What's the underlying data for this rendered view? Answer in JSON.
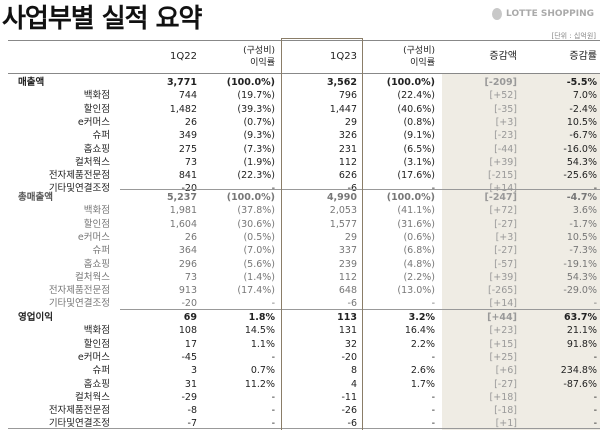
{
  "title": "사업부별 실적 요약",
  "logo": "LOTTE SHOPPING",
  "unit": "[단위 : 십억원]",
  "header": {
    "c1": "1Q22",
    "c2a": "(구성비)",
    "c2b": "이익률",
    "c3": "1Q23",
    "c4a": "(구성비)",
    "c4b": "이익률",
    "c5": "증감액",
    "c6": "증감률"
  },
  "colors": {
    "highlight_border": "#8a7d68",
    "shade": "#efece4"
  },
  "sections": [
    {
      "label": "매출액",
      "style": "normal",
      "total": [
        "3,771",
        "(100.0%)",
        "3,562",
        "(100.0%)",
        "[-209]",
        "-5.5%"
      ],
      "rows": [
        [
          "백화점",
          "744",
          "(19.7%)",
          "796",
          "(22.4%)",
          "[+52]",
          "7.0%"
        ],
        [
          "할인점",
          "1,482",
          "(39.3%)",
          "1,447",
          "(40.6%)",
          "[-35]",
          "-2.4%"
        ],
        [
          "e커머스",
          "26",
          "(0.7%)",
          "29",
          "(0.8%)",
          "[+3]",
          "10.5%"
        ],
        [
          "슈퍼",
          "349",
          "(9.3%)",
          "326",
          "(9.1%)",
          "[-23]",
          "-6.7%"
        ],
        [
          "홈쇼핑",
          "275",
          "(7.3%)",
          "231",
          "(6.5%)",
          "[-44]",
          "-16.0%"
        ],
        [
          "컬처웍스",
          "73",
          "(1.9%)",
          "112",
          "(3.1%)",
          "[+39]",
          "54.3%"
        ],
        [
          "전자제품전문점",
          "841",
          "(22.3%)",
          "626",
          "(17.6%)",
          "[-215]",
          "-25.6%"
        ],
        [
          "기타및연결조정",
          "-20",
          "-",
          "-6",
          "-",
          "[+14]",
          "-"
        ]
      ]
    },
    {
      "label": "총매출액",
      "style": "gray",
      "total": [
        "5,237",
        "(100.0%)",
        "4,990",
        "(100.0%)",
        "[-247]",
        "-4.7%"
      ],
      "rows": [
        [
          "백화점",
          "1,981",
          "(37.8%)",
          "2,053",
          "(41.1%)",
          "[+72]",
          "3.6%"
        ],
        [
          "할인점",
          "1,604",
          "(30.6%)",
          "1,577",
          "(31.6%)",
          "[-27]",
          "-1.7%"
        ],
        [
          "e커머스",
          "26",
          "(0.5%)",
          "29",
          "(0.6%)",
          "[+3]",
          "10.5%"
        ],
        [
          "슈퍼",
          "364",
          "(7.0%)",
          "337",
          "(6.8%)",
          "[-27]",
          "-7.3%"
        ],
        [
          "홈쇼핑",
          "296",
          "(5.6%)",
          "239",
          "(4.8%)",
          "[-57]",
          "-19.1%"
        ],
        [
          "컬처웍스",
          "73",
          "(1.4%)",
          "112",
          "(2.2%)",
          "[+39]",
          "54.3%"
        ],
        [
          "전자제품전문점",
          "913",
          "(17.4%)",
          "648",
          "(13.0%)",
          "[-265]",
          "-29.0%"
        ],
        [
          "기타및연결조정",
          "-20",
          "-",
          "-6",
          "-",
          "[+14]",
          "-"
        ]
      ]
    },
    {
      "label": "영업이익",
      "style": "normal",
      "total": [
        "69",
        "1.8%",
        "113",
        "3.2%",
        "[+44]",
        "63.7%"
      ],
      "rows": [
        [
          "백화점",
          "108",
          "14.5%",
          "131",
          "16.4%",
          "[+23]",
          "21.1%"
        ],
        [
          "할인점",
          "17",
          "1.1%",
          "32",
          "2.2%",
          "[+15]",
          "91.8%"
        ],
        [
          "e커머스",
          "-45",
          "-",
          "-20",
          "-",
          "[+25]",
          "-"
        ],
        [
          "슈퍼",
          "3",
          "0.7%",
          "8",
          "2.6%",
          "[+6]",
          "234.8%"
        ],
        [
          "홈쇼핑",
          "31",
          "11.2%",
          "4",
          "1.7%",
          "[-27]",
          "-87.6%"
        ],
        [
          "컬처웍스",
          "-29",
          "-",
          "-11",
          "-",
          "[+18]",
          "-"
        ],
        [
          "전자제품전문점",
          "-8",
          "-",
          "-26",
          "-",
          "[-18]",
          "-"
        ],
        [
          "기타및연결조정",
          "-7",
          "-",
          "-6",
          "-",
          "[+1]",
          "-"
        ]
      ]
    }
  ]
}
